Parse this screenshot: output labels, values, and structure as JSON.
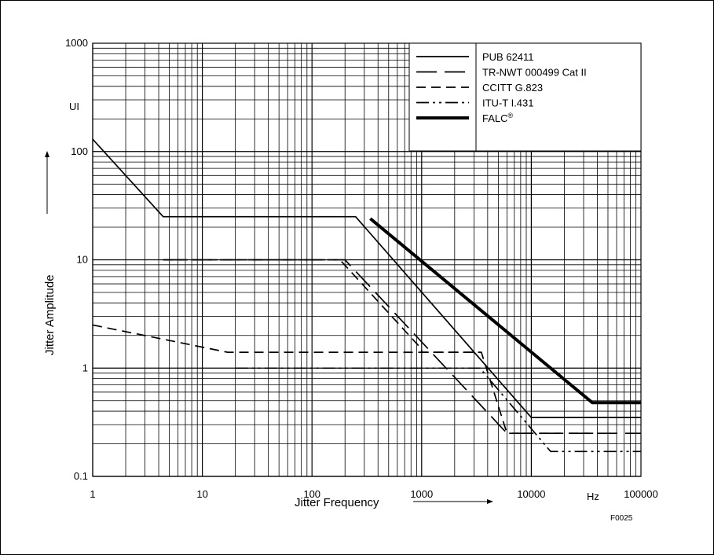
{
  "chart_data": {
    "type": "line",
    "xlabel": "Jitter Frequency",
    "ylabel": "Jitter Amplitude",
    "x_unit": "Hz",
    "y_unit": "UI",
    "figure_code": "F0025",
    "x_scale": "log",
    "y_scale": "log",
    "xlim": [
      1,
      100000
    ],
    "ylim": [
      0.1,
      1000
    ],
    "x_ticks": [
      "1",
      "10",
      "100",
      "1000",
      "10000",
      "100000"
    ],
    "y_ticks": [
      "0.1",
      "1",
      "10",
      "100",
      "1000"
    ],
    "grid": true,
    "legend_position": "top-right",
    "series": [
      {
        "name": "PUB 62411",
        "style": "solid",
        "width": "thin",
        "x": [
          1,
          4.4,
          250,
          10000,
          100000
        ],
        "y": [
          130,
          25,
          25,
          0.35,
          0.35
        ]
      },
      {
        "name": "TR-NWT 000499 Cat II",
        "style": "longdash",
        "width": "thin",
        "x": [
          4.4,
          200,
          6000,
          100000
        ],
        "y": [
          10,
          10,
          0.25,
          0.25
        ]
      },
      {
        "name": "CCITT G.823",
        "style": "dash",
        "width": "thin",
        "x": [
          4.4,
          180,
          1000,
          1000,
          3500,
          6000,
          40000
        ],
        "y": [
          10,
          10,
          1.5,
          1.4,
          1.4,
          0.25,
          0.25
        ],
        "part2": true
      },
      {
        "name": "ITU-T I.431",
        "style": "dashdot",
        "width": "thin",
        "x": [
          20,
          3400,
          15000,
          100000
        ],
        "y": [
          1,
          1,
          0.17,
          0.17
        ]
      },
      {
        "name": "FALC",
        "superscript": "®",
        "style": "solid",
        "width": "thick",
        "x": [
          340,
          36000,
          100000
        ],
        "y": [
          24,
          0.48,
          0.48
        ]
      }
    ],
    "extra_segments": [
      {
        "of": "CCITT G.823",
        "x": [
          1,
          17,
          3400
        ],
        "y": [
          2.5,
          1.4,
          1.4
        ]
      }
    ]
  }
}
